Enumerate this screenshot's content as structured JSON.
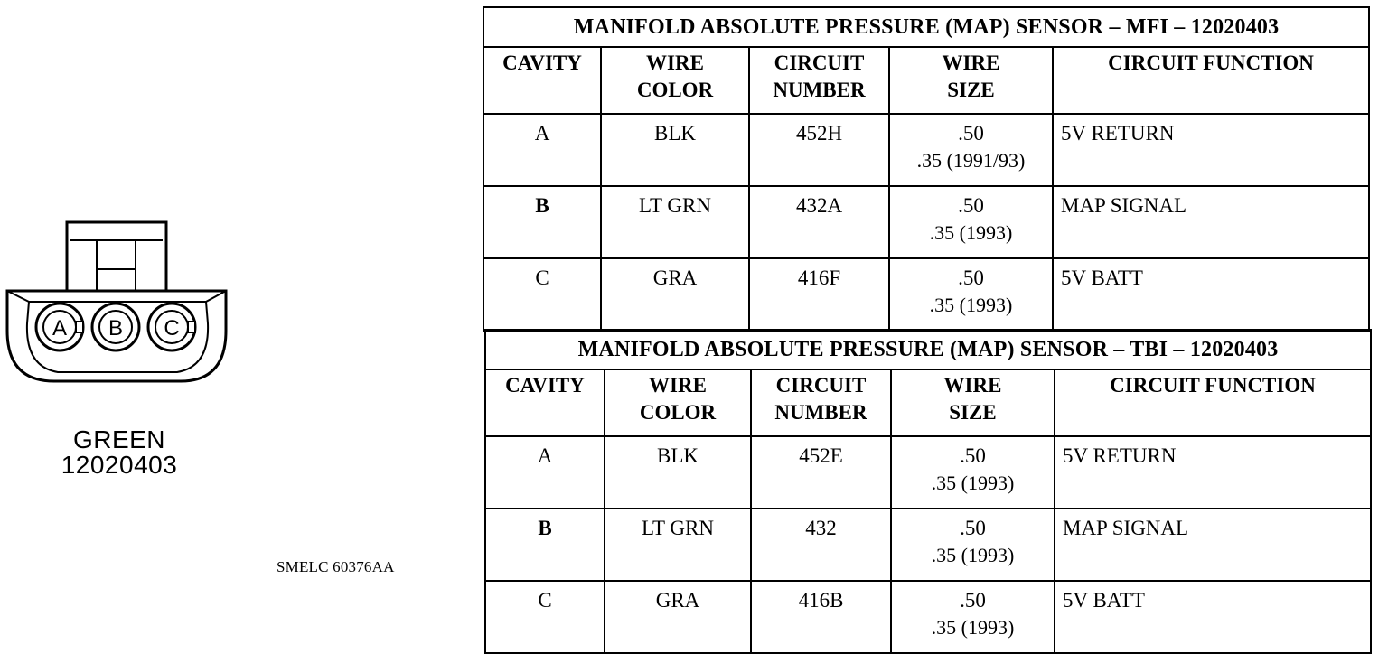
{
  "connector": {
    "color": "GREEN",
    "part_number": "12020403",
    "cavities": [
      "A",
      "B",
      "C"
    ]
  },
  "ref_code": "SMELC 60376AA",
  "tables": [
    {
      "title": "MANIFOLD ABSOLUTE PRESSURE (MAP) SENSOR – MFI – 12020403",
      "headers": {
        "cavity": "CAVITY",
        "wire_color_1": "WIRE",
        "wire_color_2": "COLOR",
        "circuit_number_1": "CIRCUIT",
        "circuit_number_2": "NUMBER",
        "wire_size_1": "WIRE",
        "wire_size_2": "SIZE",
        "circuit_function": "CIRCUIT FUNCTION"
      },
      "rows": [
        {
          "cavity": "A",
          "wire_color": "BLK",
          "circuit_number": "452H",
          "size_1": ".50",
          "size_2": ".35 (1991/93)",
          "function": "5V RETURN"
        },
        {
          "cavity": "B",
          "wire_color": "LT GRN",
          "circuit_number": "432A",
          "size_1": ".50",
          "size_2": ".35 (1993)",
          "function": "MAP SIGNAL"
        },
        {
          "cavity": "C",
          "wire_color": "GRA",
          "circuit_number": "416F",
          "size_1": ".50",
          "size_2": ".35 (1993)",
          "function": "5V BATT"
        }
      ]
    },
    {
      "title": "MANIFOLD ABSOLUTE PRESSURE (MAP) SENSOR – TBI – 12020403",
      "headers": {
        "cavity": "CAVITY",
        "wire_color_1": "WIRE",
        "wire_color_2": "COLOR",
        "circuit_number_1": "CIRCUIT",
        "circuit_number_2": "NUMBER",
        "wire_size_1": "WIRE",
        "wire_size_2": "SIZE",
        "circuit_function": "CIRCUIT FUNCTION"
      },
      "rows": [
        {
          "cavity": "A",
          "wire_color": "BLK",
          "circuit_number": "452E",
          "size_1": ".50",
          "size_2": ".35 (1993)",
          "function": "5V RETURN"
        },
        {
          "cavity": "B",
          "wire_color": "LT GRN",
          "circuit_number": "432",
          "size_1": ".50",
          "size_2": ".35 (1993)",
          "function": "MAP SIGNAL"
        },
        {
          "cavity": "C",
          "wire_color": "GRA",
          "circuit_number": "416B",
          "size_1": ".50",
          "size_2": ".35 (1993)",
          "function": "5V BATT"
        }
      ]
    }
  ]
}
